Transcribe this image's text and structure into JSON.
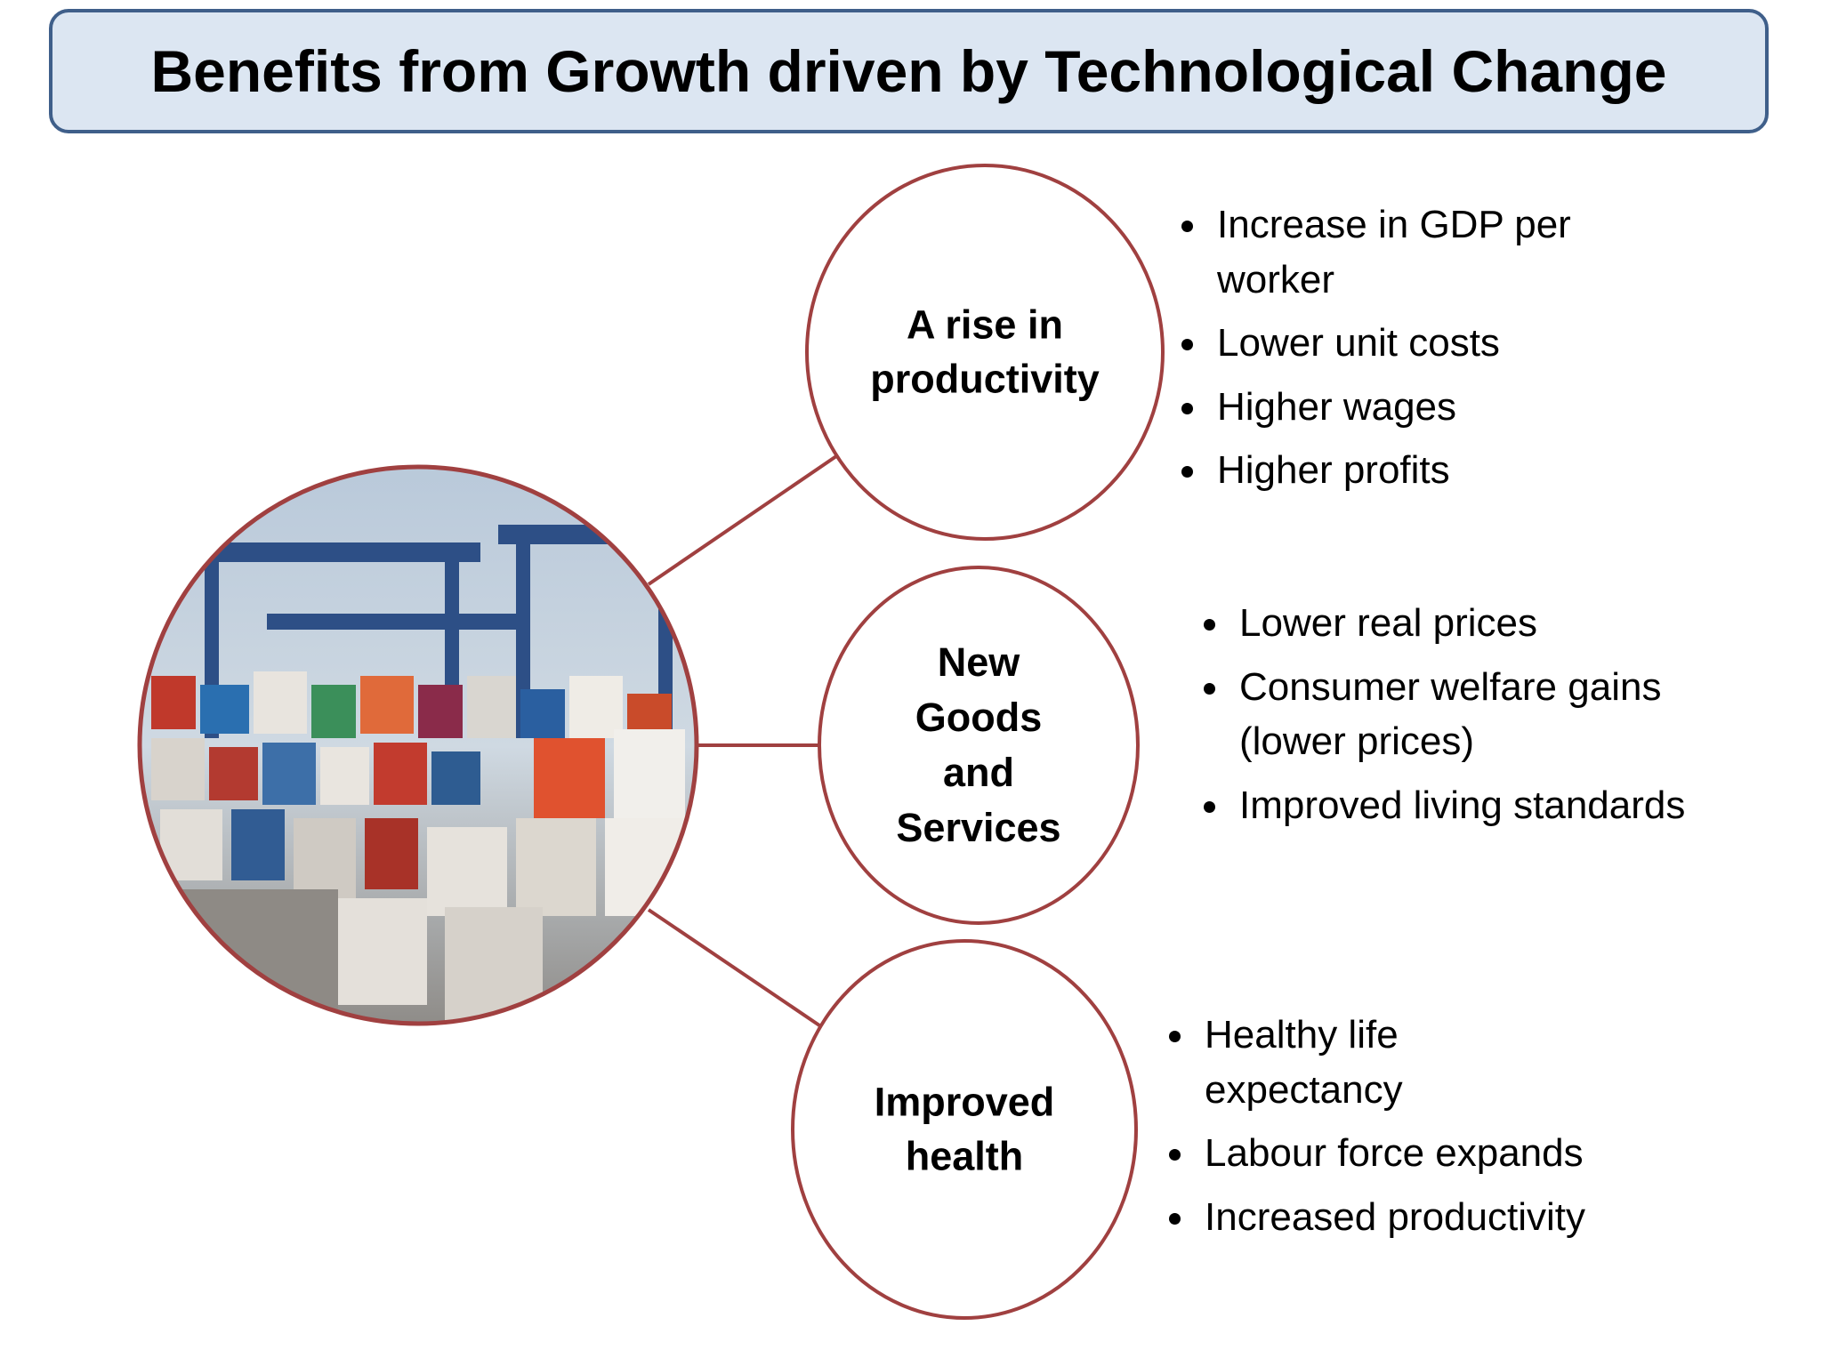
{
  "header": {
    "title": "Benefits from Growth driven by Technological Change"
  },
  "nodes": [
    {
      "label": "A rise in productivity",
      "bullets": [
        "Increase in GDP per worker",
        "Lower unit costs",
        "Higher wages",
        "Higher profits"
      ]
    },
    {
      "label": "New Goods and Services",
      "bullets": [
        "Lower real prices",
        "Consumer welfare gains (lower prices)",
        "Improved living standards"
      ]
    },
    {
      "label": "Improved health",
      "bullets": [
        "Healthy life expectancy",
        "Labour force expands",
        "Increased productivity"
      ]
    }
  ]
}
